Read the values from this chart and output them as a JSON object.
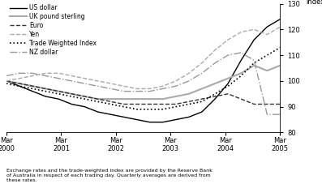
{
  "ylabel": "index",
  "ylim": [
    80,
    130
  ],
  "yticks": [
    80,
    90,
    100,
    110,
    120,
    130
  ],
  "xlim": [
    0,
    20
  ],
  "x_positions": [
    0,
    4,
    8,
    12,
    16,
    20
  ],
  "x_labels": [
    "Mar\n2000",
    "Mar\n2001",
    "Mar\n2002",
    "Mar\n2003",
    "Mar\n2004",
    "Mar\n2005"
  ],
  "footnote": "Exchange rates and the trade-weighted index are provided by the Reserve Bank\nof Australia in respect of each trading day. Quarterly averages are derived from\nthese rates.",
  "series": [
    {
      "label": "US dollar",
      "color": "#000000",
      "linestyle": "-",
      "linewidth": 1.0,
      "values": [
        100,
        98,
        96,
        94,
        93,
        91,
        90,
        88,
        87,
        86,
        85,
        84,
        84,
        85,
        86,
        88,
        93,
        99,
        108,
        116,
        121,
        124
      ]
    },
    {
      "label": "UK pound sterling",
      "color": "#aaaaaa",
      "linestyle": "-",
      "linewidth": 1.5,
      "values": [
        100,
        99,
        98,
        97,
        96,
        95,
        94,
        93,
        93,
        93,
        93,
        93,
        93,
        94,
        95,
        97,
        99,
        101,
        103,
        106,
        104,
        106
      ]
    },
    {
      "label": "Euro",
      "color": "#333333",
      "linestyle": "--",
      "linewidth": 1.0,
      "values": [
        100,
        99,
        98,
        97,
        96,
        95,
        94,
        93,
        92,
        91,
        91,
        91,
        91,
        91,
        92,
        93,
        94,
        95,
        93,
        91,
        91,
        91
      ]
    },
    {
      "label": "Yen",
      "color": "#aaaaaa",
      "linestyle": "--",
      "linewidth": 1.0,
      "values": [
        100,
        101,
        102,
        103,
        103,
        102,
        101,
        100,
        99,
        98,
        97,
        97,
        98,
        100,
        103,
        107,
        112,
        116,
        119,
        120,
        118,
        121
      ]
    },
    {
      "label": "Trade Weighted Index",
      "color": "#000000",
      "linestyle": ":",
      "linewidth": 1.2,
      "values": [
        99,
        98,
        97,
        96,
        95,
        94,
        93,
        92,
        91,
        90,
        89,
        89,
        89,
        90,
        91,
        92,
        95,
        98,
        102,
        107,
        110,
        113
      ]
    },
    {
      "label": "NZ dollar",
      "color": "#999999",
      "linestyle": "-.",
      "linewidth": 1.0,
      "values": [
        102,
        103,
        103,
        102,
        101,
        100,
        99,
        98,
        97,
        96,
        96,
        96,
        97,
        98,
        100,
        103,
        107,
        110,
        111,
        108,
        87,
        87
      ]
    }
  ]
}
